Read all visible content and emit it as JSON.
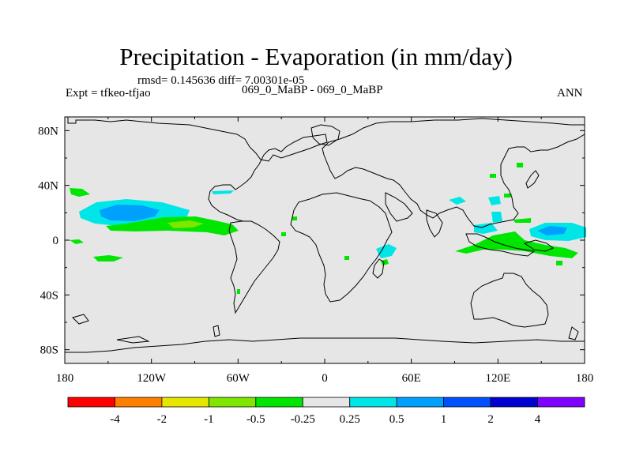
{
  "chart_data": {
    "type": "heatmap",
    "title": "Precipitation - Evaporation (in mm/day)",
    "stats_text": "rmsd= 0.145636 diff= 7.00301e-05",
    "subtitle": "069_0_MaBP - 069_0_MaBP",
    "left_label": "Expt = tfkeo-tfjao",
    "right_label": "ANN",
    "x_ticks": [
      "180",
      "120W",
      "60W",
      "0",
      "60E",
      "120E",
      "180"
    ],
    "x_tick_values": [
      -180,
      -120,
      -60,
      0,
      60,
      120,
      180
    ],
    "y_ticks": [
      "80N",
      "40N",
      "0",
      "40S",
      "80S"
    ],
    "y_tick_values": [
      80,
      40,
      0,
      -40,
      -80
    ],
    "xlim": [
      -180,
      180
    ],
    "ylim": [
      -90,
      90
    ],
    "background_value_range": [
      -0.25,
      0.25
    ],
    "colorbar": {
      "colors": [
        "#ff0000",
        "#ff7f00",
        "#e6e600",
        "#7fe600",
        "#00e600",
        "#e6e6e6",
        "#00e6e6",
        "#00a0ff",
        "#0050ff",
        "#0000d0",
        "#8000ff"
      ],
      "labels": [
        "-4",
        "-2",
        "-1",
        "-0.5",
        "-0.25",
        "0.25",
        "0.5",
        "1",
        "2",
        "4"
      ]
    },
    "anomalies": [
      {
        "name": "central-pacific-wet",
        "lon": -145,
        "lat": 14,
        "level": "0.5 to 1",
        "color": "#00a0ff"
      },
      {
        "name": "pacific-itcz-dry",
        "lon": -110,
        "lat": 7,
        "level": "-0.5 to -0.25",
        "color": "#00e600"
      },
      {
        "name": "western-pacific-wet",
        "lon": 160,
        "lat": 2,
        "level": "0.5 to 1",
        "color": "#00a0ff"
      },
      {
        "name": "maritime-dry",
        "lon": 140,
        "lat": -8,
        "level": "-0.5 to -0.25",
        "color": "#00e600"
      },
      {
        "name": "madagascar-wet",
        "lon": 45,
        "lat": -12,
        "level": "0.25 to 0.5",
        "color": "#00e6e6"
      }
    ]
  }
}
